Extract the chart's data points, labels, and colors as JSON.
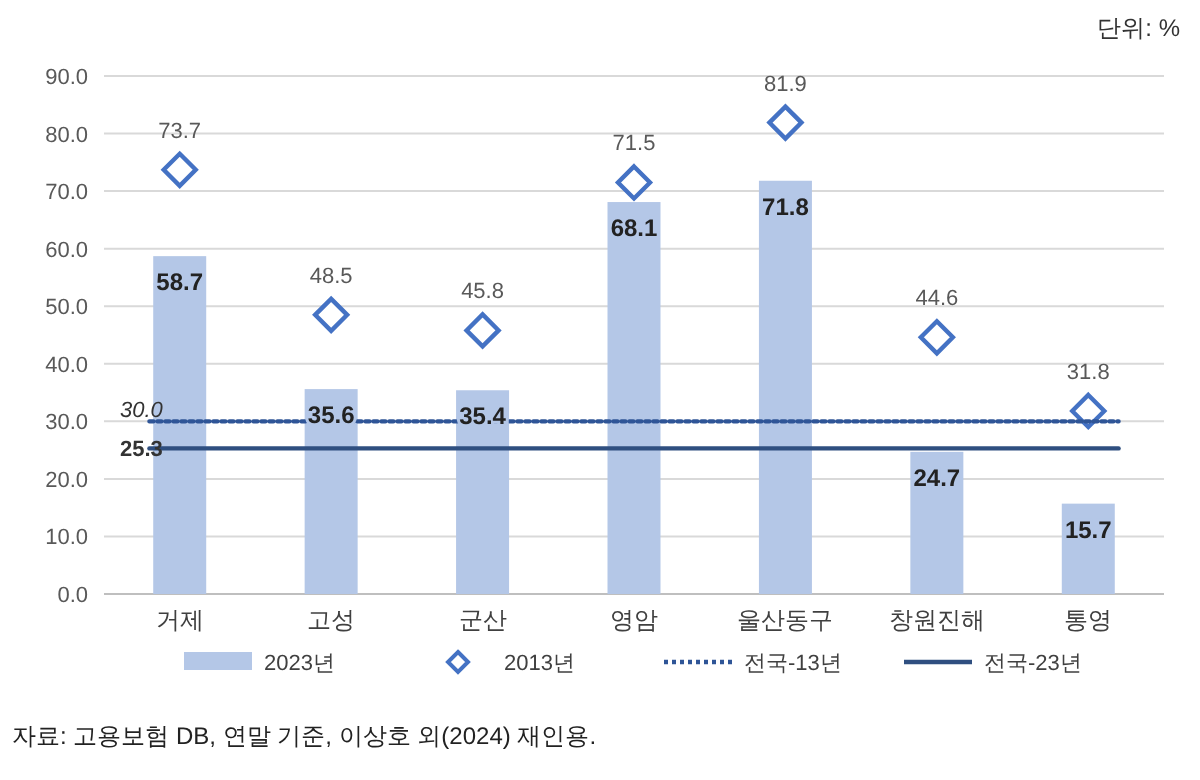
{
  "chart_data": {
    "type": "bar",
    "categories": [
      "거제",
      "고성",
      "군산",
      "영암",
      "울산동구",
      "창원진해",
      "통영"
    ],
    "series": [
      {
        "name": "2023년",
        "color": "#b4c7e7",
        "values": [
          58.7,
          35.6,
          35.4,
          68.1,
          71.8,
          24.7,
          15.7
        ]
      },
      {
        "name": "2013년",
        "type": "scatter",
        "marker": "diamond",
        "color": "#4472c4",
        "values": [
          73.7,
          48.5,
          45.8,
          71.5,
          81.9,
          44.6,
          31.8
        ]
      }
    ],
    "ref_lines": [
      {
        "axis": "y",
        "value": 30.0,
        "label": "전국-13년",
        "color": "#2f5597",
        "line_style": "dotted"
      },
      {
        "axis": "y",
        "value": 25.3,
        "label": "전국-23년",
        "color": "#2f4f80",
        "line_style": "solid"
      }
    ],
    "ylim": [
      0,
      90
    ],
    "yticks": [
      {
        "value": 0,
        "label": "0.0"
      },
      {
        "value": 10,
        "label": "10.0"
      },
      {
        "value": 20,
        "label": "20.0"
      },
      {
        "value": 30,
        "label": "30.0"
      },
      {
        "value": 40,
        "label": "40.0"
      },
      {
        "value": 50,
        "label": "50.0"
      },
      {
        "value": 60,
        "label": "60.0"
      },
      {
        "value": 70,
        "label": "70.0"
      },
      {
        "value": 80,
        "label": "80.0"
      },
      {
        "value": 90,
        "label": "90.0"
      }
    ],
    "grid": "y",
    "legend": "bottom",
    "data_labels": true,
    "annotations": [
      "단위: %",
      {
        "text": "30.0",
        "y": 30.0
      },
      {
        "text": "25.3",
        "y": 25.3
      },
      "자료: 고용보험 DB, 연말 기준, 이상호 외(2024) 재인용."
    ]
  }
}
